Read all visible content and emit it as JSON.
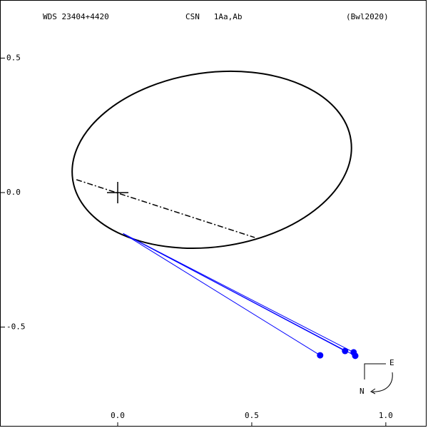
{
  "chart_data": {
    "type": "orbit",
    "header": [
      "WDS 23404+4420",
      "CSN   1Aa,Ab",
      "(Bwl2020)"
    ],
    "xlim": [
      -0.439,
      1.152
    ],
    "ylim": [
      -0.87,
      0.716
    ],
    "xticks": [
      {
        "value": 0,
        "label": "0.0"
      },
      0.5,
      {
        "value": 1,
        "label": "1.0"
      }
    ],
    "yticks": [
      0.5,
      {
        "value": 0,
        "label": "0.0"
      },
      -0.5
    ],
    "orbit": {
      "center": [
        0.351,
        0.122
      ],
      "a": 0.524,
      "b": 0.324,
      "angle": 8,
      "color": "#000000"
    },
    "line_of_nodes": {
      "x": [
        -0.154,
        0.511
      ],
      "y": [
        0.048,
        -0.167
      ]
    },
    "observations": {
      "color": "#0000ff",
      "x": [
        0.755,
        0.848,
        0.88,
        0.886
      ],
      "y": [
        -0.605,
        -0.589,
        -0.594,
        -0.607
      ],
      "fit_x": [
        0.02,
        0.02,
        0.02,
        0.02
      ],
      "fit_y": [
        -0.152,
        -0.152,
        -0.152,
        -0.152
      ]
    },
    "compass": {
      "east": "E",
      "north": "N"
    }
  }
}
